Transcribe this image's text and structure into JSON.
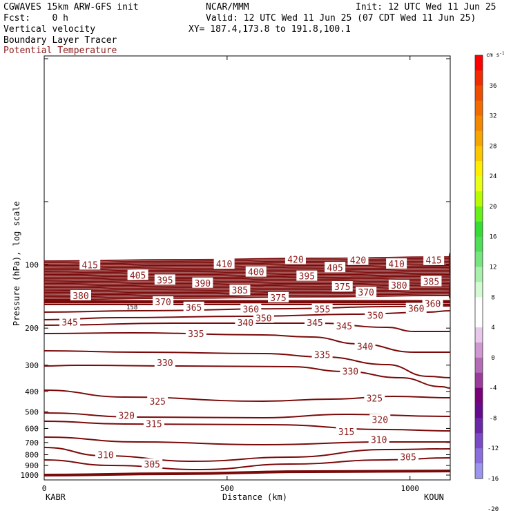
{
  "header": {
    "model": "CGWAVES 15km ARW-GFS init",
    "org": "NCAR/MMM",
    "init": "Init: 12 UTC Wed 11 Jun 25",
    "fcst": "Fcst:    0 h",
    "valid": "Valid: 12 UTC Wed 11 Jun 25 (07 CDT Wed 11 Jun 25)",
    "field1": "Vertical velocity",
    "xy": "XY= 187.4,173.8 to 191.8,100.1",
    "field2": "Boundary Layer Tracer",
    "field3": "Potential Temperature"
  },
  "chart_data": {
    "type": "line",
    "xlabel": "Distance (km)",
    "ylabel": "Pressure (hPa), log scale",
    "x_ticks": [
      "0",
      "500",
      "1000"
    ],
    "x_range": [
      0,
      1110
    ],
    "y_ticks": [
      "100",
      "200",
      "300",
      "400",
      "500",
      "600",
      "700",
      "800",
      "900",
      "1000"
    ],
    "left_station": "KABR",
    "right_station": "KOUN",
    "tropopause_label": "158",
    "colorbar": {
      "unit": "cm s",
      "unit_exp": "-1",
      "labels": [
        "36",
        "32",
        "28",
        "24",
        "20",
        "16",
        "12",
        "8",
        "4",
        "0",
        "-4",
        "-8",
        "-12",
        "-16",
        "-20"
      ],
      "colors": [
        "#ff0000",
        "#f12a00",
        "#ee4d00",
        "#f26a00",
        "#f38700",
        "#f7a500",
        "#fcc700",
        "#ffee00",
        "#e9ff1a",
        "#b9fb00",
        "#67f01a",
        "#36dc36",
        "#4ede58",
        "#76e480",
        "#a8f0ac",
        "#d4fad4",
        "#ffffff",
        "#ffffff",
        "#e8c8e8",
        "#cf98d0",
        "#b46cb6",
        "#9b3b9b",
        "#7a007a",
        "#650a8c",
        "#6a28a8",
        "#7a4ac8",
        "#8a6ee0",
        "#9b95f0"
      ]
    },
    "theta_labels": [
      {
        "text": "415",
        "x": 125,
        "p": 100
      },
      {
        "text": "405",
        "x": 256,
        "p": 112
      },
      {
        "text": "395",
        "x": 330,
        "p": 118
      },
      {
        "text": "390",
        "x": 433,
        "p": 122
      },
      {
        "text": "385",
        "x": 535,
        "p": 132
      },
      {
        "text": "375",
        "x": 640,
        "p": 143
      },
      {
        "text": "380",
        "x": 100,
        "p": 140
      },
      {
        "text": "370",
        "x": 325,
        "p": 150
      },
      {
        "text": "365",
        "x": 409,
        "p": 159
      },
      {
        "text": "360",
        "x": 565,
        "p": 162
      },
      {
        "text": "355",
        "x": 760,
        "p": 162
      },
      {
        "text": "350",
        "x": 600,
        "p": 179
      },
      {
        "text": "345",
        "x": 70,
        "p": 187
      },
      {
        "text": "340",
        "x": 550,
        "p": 188
      },
      {
        "text": "345",
        "x": 740,
        "p": 188
      },
      {
        "text": "345",
        "x": 820,
        "p": 195
      },
      {
        "text": "335",
        "x": 415,
        "p": 212
      },
      {
        "text": "340",
        "x": 877,
        "p": 244
      },
      {
        "text": "335",
        "x": 760,
        "p": 267
      },
      {
        "text": "330",
        "x": 330,
        "p": 291
      },
      {
        "text": "330",
        "x": 837,
        "p": 320
      },
      {
        "text": "325",
        "x": 310,
        "p": 445
      },
      {
        "text": "325",
        "x": 903,
        "p": 430
      },
      {
        "text": "320",
        "x": 225,
        "p": 520
      },
      {
        "text": "320",
        "x": 918,
        "p": 545
      },
      {
        "text": "315",
        "x": 300,
        "p": 570
      },
      {
        "text": "315",
        "x": 826,
        "p": 620
      },
      {
        "text": "310",
        "x": 168,
        "p": 800
      },
      {
        "text": "310",
        "x": 915,
        "p": 678
      },
      {
        "text": "305",
        "x": 295,
        "p": 885
      },
      {
        "text": "305",
        "x": 995,
        "p": 818
      },
      {
        "text": "420",
        "x": 687,
        "p": 94
      },
      {
        "text": "420",
        "x": 858,
        "p": 95
      },
      {
        "text": "410",
        "x": 492,
        "p": 99
      },
      {
        "text": "410",
        "x": 963,
        "p": 99
      },
      {
        "text": "415",
        "x": 1065,
        "p": 95
      },
      {
        "text": "400",
        "x": 579,
        "p": 108
      },
      {
        "text": "405",
        "x": 795,
        "p": 103
      },
      {
        "text": "395",
        "x": 718,
        "p": 113
      },
      {
        "text": "370",
        "x": 880,
        "p": 135
      },
      {
        "text": "375",
        "x": 815,
        "p": 127
      },
      {
        "text": "380",
        "x": 970,
        "p": 125
      },
      {
        "text": "385",
        "x": 1058,
        "p": 120
      },
      {
        "text": "360",
        "x": 1062,
        "p": 153
      },
      {
        "text": "360",
        "x": 1017,
        "p": 161
      },
      {
        "text": "350",
        "x": 905,
        "p": 174
      }
    ]
  }
}
